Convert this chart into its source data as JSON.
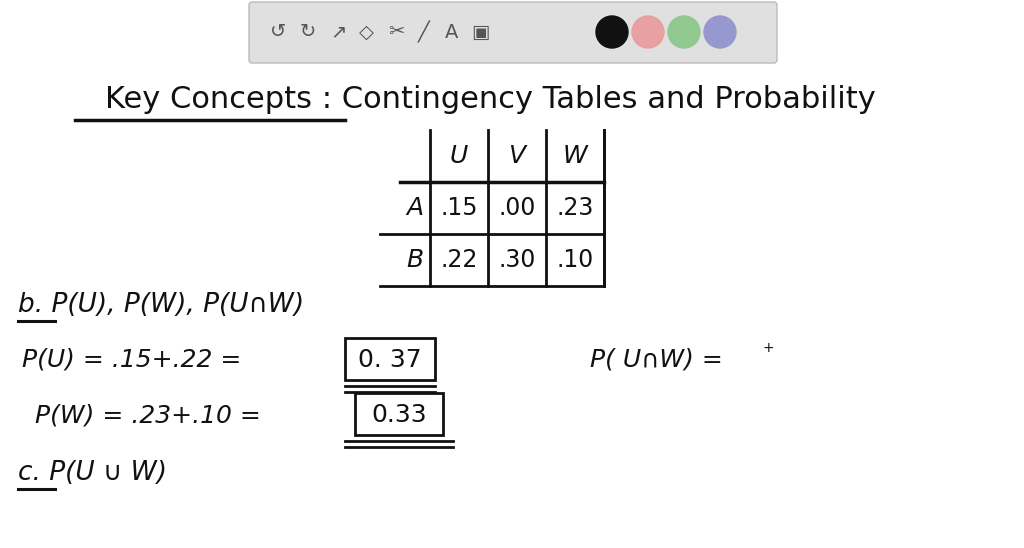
{
  "bg_color": "#ffffff",
  "toolbar_bg": "#e0e0e0",
  "fig_w": 10.24,
  "fig_h": 5.48,
  "dpi": 100,
  "title": "Key Concepts : Contingency Tables and Probability",
  "table_col_headers": [
    "U",
    "V",
    "W"
  ],
  "table_row_headers": [
    "A",
    "B"
  ],
  "table_data": [
    [
      ".15",
      ".00",
      ".23"
    ],
    [
      ".22",
      ".30",
      ".10"
    ]
  ],
  "section_b_text": "b. P(U), P(W), P(U∩W)",
  "pu_text": "P(U) = .15+.22 =",
  "pu_box": "0. 37",
  "pw_text": "P(W) = .23+.10 =",
  "pw_box": "0.33",
  "punw_text": "P( U∩W) =",
  "section_c_text": "c. P(U ∪ W)",
  "color": "#111111",
  "circle_colors": [
    "#111111",
    "#e8a0a0",
    "#90c890",
    "#9898d0"
  ],
  "toolbar_icon_color": "#555555"
}
